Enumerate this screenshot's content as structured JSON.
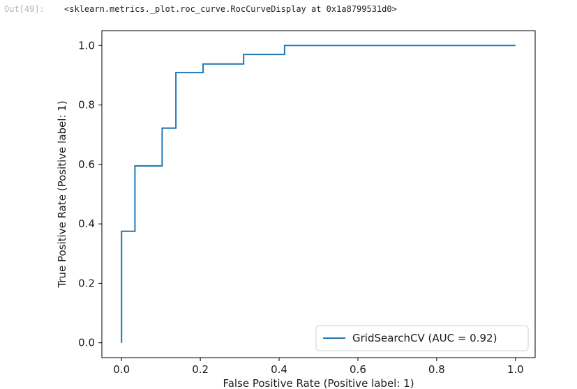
{
  "cell": {
    "prompt": "Out[49]:",
    "output_text": "<sklearn.metrics._plot.roc_curve.RocCurveDisplay at 0x1a8799531d0>"
  },
  "chart_data": {
    "type": "line",
    "title": "",
    "xlabel": "False Positive Rate (Positive label: 1)",
    "ylabel": "True Positive Rate (Positive label: 1)",
    "xlim": [
      -0.05,
      1.05
    ],
    "ylim": [
      -0.05,
      1.05
    ],
    "xticks": [
      "0.0",
      "0.2",
      "0.4",
      "0.6",
      "0.8",
      "1.0"
    ],
    "yticks": [
      "0.0",
      "0.2",
      "0.4",
      "0.6",
      "0.8",
      "1.0"
    ],
    "grid": false,
    "legend_position": "lower-right",
    "series": [
      {
        "name": "GridSearchCV (AUC = 0.92)",
        "color": "#1f77b4",
        "x": [
          0.0,
          0.0,
          0.034,
          0.034,
          0.103,
          0.103,
          0.138,
          0.138,
          0.207,
          0.207,
          0.31,
          0.31,
          0.414,
          0.414,
          1.0
        ],
        "y": [
          0.0,
          0.375,
          0.375,
          0.595,
          0.595,
          0.722,
          0.722,
          0.909,
          0.909,
          0.938,
          0.938,
          0.97,
          0.97,
          1.0,
          1.0
        ]
      }
    ]
  }
}
